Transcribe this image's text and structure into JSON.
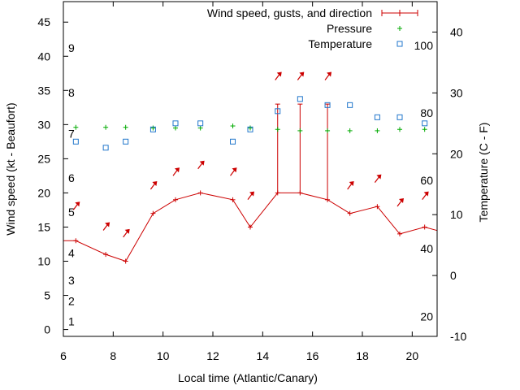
{
  "chart_data": {
    "type": "line",
    "title": "",
    "xlabel": "Local time (Atlantic/Canary)",
    "ylabel": "Wind speed (kt - Beaufort)",
    "y2label": "Temperature (C - F)",
    "xlim": [
      6,
      21
    ],
    "ylim": [
      -1,
      48
    ],
    "y2lim": [
      -10,
      45
    ],
    "x_ticks": [
      6,
      8,
      10,
      12,
      14,
      16,
      18,
      20
    ],
    "y_ticks": [
      0,
      5,
      10,
      15,
      20,
      25,
      30,
      35,
      40,
      45
    ],
    "y2_ticks": [
      -10,
      0,
      10,
      20,
      30,
      40
    ],
    "beaufort_labels": [
      {
        "label": "1",
        "y": 1.2
      },
      {
        "label": "2",
        "y": 4.2
      },
      {
        "label": "3",
        "y": 7.2
      },
      {
        "label": "4",
        "y": 11.2
      },
      {
        "label": "5",
        "y": 17.2
      },
      {
        "label": "6",
        "y": 22.2
      },
      {
        "label": "7",
        "y": 28.7
      },
      {
        "label": "8",
        "y": 34.7
      },
      {
        "label": "9",
        "y": 41.2
      }
    ],
    "fahrenheit_labels": [
      {
        "label": "20",
        "y2": -6.7
      },
      {
        "label": "40",
        "y2": 4.4
      },
      {
        "label": "60",
        "y2": 15.6
      },
      {
        "label": "80",
        "y2": 26.7
      },
      {
        "label": "100",
        "y2": 37.8
      }
    ],
    "legend": {
      "position": "top-right",
      "entries": [
        "Wind speed, gusts, and direction",
        "Pressure",
        "Temperature"
      ]
    },
    "series": [
      {
        "name": "Wind speed, gusts, and direction",
        "color": "#cc0000",
        "x": [
          6,
          6.5,
          7.7,
          8.5,
          9.6,
          10.5,
          11.5,
          12.8,
          13.5,
          14.6,
          15.5,
          16.6,
          17.5,
          18.6,
          19.5,
          20.5,
          21
        ],
        "speed": [
          13,
          13,
          11,
          10,
          17,
          19,
          20,
          19,
          15,
          20,
          20,
          19,
          17,
          18,
          14,
          15,
          14.5
        ],
        "gusts": [
          {
            "x": 14.6,
            "value": 33
          },
          {
            "x": 15.5,
            "value": 33
          },
          {
            "x": 16.6,
            "value": 33
          }
        ],
        "direction_arrows": [
          {
            "x": 6.5,
            "speed": 18
          },
          {
            "x": 7.7,
            "speed": 15
          },
          {
            "x": 8.5,
            "speed": 14
          },
          {
            "x": 9.6,
            "speed": 21
          },
          {
            "x": 10.5,
            "speed": 23
          },
          {
            "x": 11.5,
            "speed": 24
          },
          {
            "x": 12.8,
            "speed": 23
          },
          {
            "x": 13.5,
            "speed": 19.5
          },
          {
            "x": 14.6,
            "speed": 37
          },
          {
            "x": 15.5,
            "speed": 37
          },
          {
            "x": 16.6,
            "speed": 37
          },
          {
            "x": 17.5,
            "speed": 21
          },
          {
            "x": 18.6,
            "speed": 22
          },
          {
            "x": 19.5,
            "speed": 18.5
          },
          {
            "x": 20.5,
            "speed": 19.5
          }
        ]
      },
      {
        "name": "Pressure",
        "color": "#00aa00",
        "x": [
          6.5,
          7.7,
          8.5,
          9.6,
          10.5,
          11.5,
          12.8,
          13.5,
          14.6,
          15.5,
          16.6,
          17.5,
          18.6,
          19.5,
          20.5
        ],
        "values": [
          29.6,
          29.6,
          29.6,
          29.5,
          29.5,
          29.5,
          29.8,
          29.5,
          29.3,
          29.1,
          29.1,
          29.1,
          29.1,
          29.3,
          29.3
        ]
      },
      {
        "name": "Temperature",
        "color": "#2277cc",
        "axis": "y2",
        "x": [
          6.5,
          7.7,
          8.5,
          9.6,
          10.5,
          11.5,
          12.8,
          13.5,
          14.6,
          15.5,
          16.6,
          17.5,
          18.6,
          19.5,
          20.5
        ],
        "values": [
          22,
          21,
          22,
          24,
          25,
          25,
          22,
          24,
          27,
          29,
          28,
          28,
          26,
          26,
          25
        ]
      }
    ]
  }
}
